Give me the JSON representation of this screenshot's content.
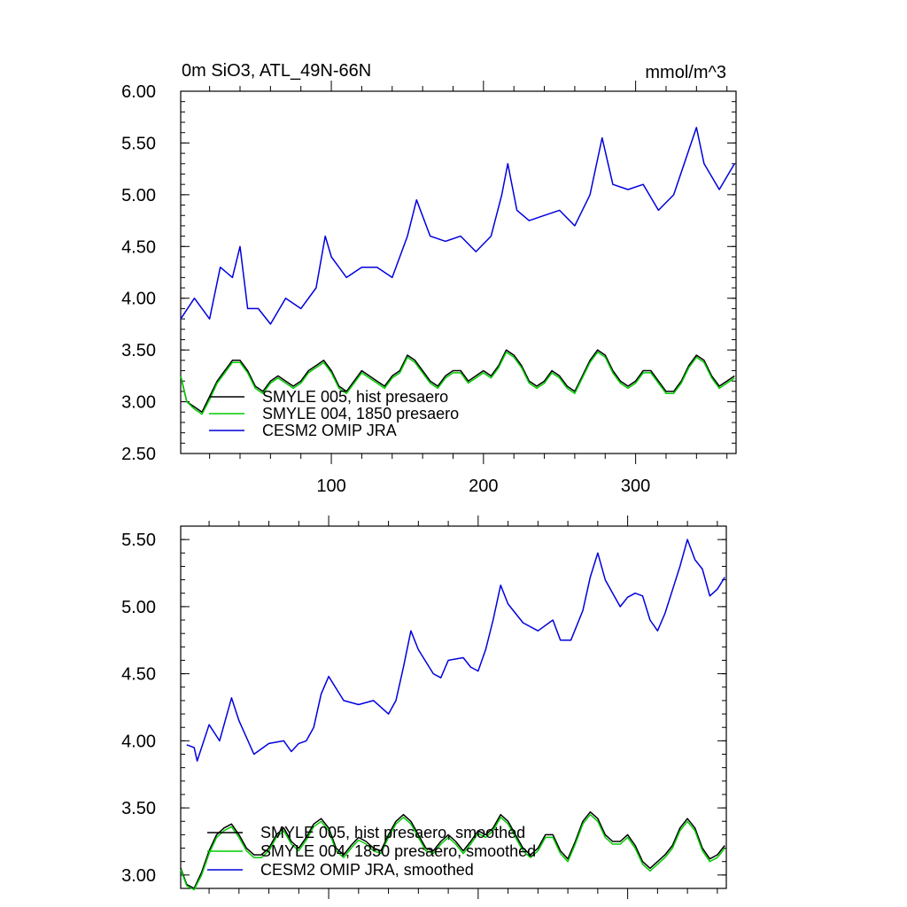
{
  "chart_data": [
    {
      "type": "line",
      "title_left": "0m SiO3, ATL_49N-66N",
      "title_right": "mmol/m^3",
      "xlim": [
        1,
        366
      ],
      "ylim": [
        2.5,
        6.0
      ],
      "x_ticks": [
        100,
        200,
        300
      ],
      "x_tick_labels": [
        "100",
        "200",
        "300"
      ],
      "y_ticks": [
        2.5,
        3.0,
        3.5,
        4.0,
        4.5,
        5.0,
        5.5,
        6.0
      ],
      "y_tick_labels": [
        "2.50",
        "3.00",
        "3.50",
        "4.00",
        "4.50",
        "5.00",
        "5.50",
        "6.00"
      ],
      "legend": [
        {
          "label": "SMYLE 005, hist presaero",
          "color": "#000000"
        },
        {
          "label": "SMYLE 004, 1850 presaero",
          "color": "#00cc00"
        },
        {
          "label": "CESM2 OMIP JRA",
          "color": "#0000dd"
        }
      ],
      "series": [
        {
          "name": "CESM2 OMIP JRA",
          "color": "#0000dd",
          "x": [
            1,
            10,
            20,
            27,
            35,
            40,
            45,
            52,
            60,
            70,
            80,
            90,
            96,
            100,
            110,
            120,
            130,
            140,
            150,
            156,
            165,
            175,
            185,
            195,
            205,
            212,
            216,
            222,
            230,
            240,
            250,
            260,
            270,
            278,
            285,
            295,
            305,
            315,
            325,
            340,
            345,
            355,
            365
          ],
          "values": [
            3.8,
            4.0,
            3.8,
            4.3,
            4.2,
            4.5,
            3.9,
            3.9,
            3.75,
            4.0,
            3.9,
            4.1,
            4.6,
            4.4,
            4.2,
            4.3,
            4.3,
            4.2,
            4.6,
            4.95,
            4.6,
            4.55,
            4.6,
            4.45,
            4.6,
            5.0,
            5.3,
            4.85,
            4.75,
            4.8,
            4.85,
            4.7,
            5.0,
            5.55,
            5.1,
            5.05,
            5.1,
            4.85,
            5.0,
            5.65,
            5.3,
            5.05,
            5.3
          ]
        },
        {
          "name": "SMYLE 005, hist presaero",
          "color": "#000000",
          "x": [
            1,
            5,
            10,
            15,
            20,
            25,
            30,
            35,
            40,
            45,
            50,
            55,
            60,
            65,
            70,
            75,
            80,
            85,
            90,
            95,
            100,
            105,
            110,
            115,
            120,
            125,
            130,
            135,
            140,
            145,
            150,
            155,
            160,
            165,
            170,
            175,
            180,
            185,
            190,
            195,
            200,
            205,
            210,
            215,
            220,
            225,
            230,
            235,
            240,
            245,
            250,
            255,
            260,
            265,
            270,
            275,
            280,
            285,
            290,
            295,
            300,
            305,
            310,
            315,
            320,
            325,
            330,
            335,
            340,
            345,
            350,
            355,
            360,
            365
          ],
          "values": [
            3.25,
            3.0,
            2.95,
            2.9,
            3.05,
            3.2,
            3.3,
            3.4,
            3.4,
            3.3,
            3.15,
            3.1,
            3.2,
            3.25,
            3.2,
            3.15,
            3.2,
            3.3,
            3.35,
            3.4,
            3.3,
            3.15,
            3.1,
            3.2,
            3.3,
            3.25,
            3.2,
            3.15,
            3.25,
            3.3,
            3.45,
            3.4,
            3.3,
            3.2,
            3.15,
            3.25,
            3.3,
            3.3,
            3.2,
            3.25,
            3.3,
            3.25,
            3.35,
            3.5,
            3.45,
            3.35,
            3.2,
            3.15,
            3.2,
            3.3,
            3.25,
            3.15,
            3.1,
            3.25,
            3.4,
            3.5,
            3.45,
            3.3,
            3.2,
            3.15,
            3.2,
            3.3,
            3.3,
            3.2,
            3.1,
            3.1,
            3.2,
            3.35,
            3.45,
            3.4,
            3.25,
            3.15,
            3.2,
            3.25
          ]
        },
        {
          "name": "SMYLE 004, 1850 presaero",
          "color": "#00cc00",
          "x": [
            1,
            5,
            10,
            15,
            20,
            25,
            30,
            35,
            40,
            45,
            50,
            55,
            60,
            65,
            70,
            75,
            80,
            85,
            90,
            95,
            100,
            105,
            110,
            115,
            120,
            125,
            130,
            135,
            140,
            145,
            150,
            155,
            160,
            165,
            170,
            175,
            180,
            185,
            190,
            195,
            200,
            205,
            210,
            215,
            220,
            225,
            230,
            235,
            240,
            245,
            250,
            255,
            260,
            265,
            270,
            275,
            280,
            285,
            290,
            295,
            300,
            305,
            310,
            315,
            320,
            325,
            330,
            335,
            340,
            345,
            350,
            355,
            360,
            365
          ],
          "values": [
            3.25,
            3.0,
            2.93,
            2.88,
            3.02,
            3.18,
            3.28,
            3.38,
            3.38,
            3.28,
            3.13,
            3.08,
            3.18,
            3.23,
            3.18,
            3.13,
            3.18,
            3.28,
            3.33,
            3.38,
            3.28,
            3.13,
            3.08,
            3.18,
            3.28,
            3.23,
            3.18,
            3.13,
            3.23,
            3.28,
            3.43,
            3.38,
            3.28,
            3.18,
            3.13,
            3.23,
            3.28,
            3.28,
            3.18,
            3.23,
            3.28,
            3.23,
            3.33,
            3.48,
            3.43,
            3.33,
            3.18,
            3.13,
            3.18,
            3.28,
            3.23,
            3.13,
            3.08,
            3.23,
            3.38,
            3.48,
            3.43,
            3.28,
            3.18,
            3.13,
            3.18,
            3.28,
            3.28,
            3.18,
            3.08,
            3.08,
            3.18,
            3.33,
            3.43,
            3.38,
            3.23,
            3.13,
            3.18,
            3.23
          ]
        }
      ]
    },
    {
      "type": "line",
      "xlim": [
        1,
        366
      ],
      "ylim": [
        2.9,
        5.6
      ],
      "x_ticks": [
        100,
        200,
        300
      ],
      "x_tick_labels": [],
      "y_ticks": [
        3.0,
        3.5,
        4.0,
        4.5,
        5.0,
        5.5
      ],
      "y_tick_labels": [
        "3.00",
        "3.50",
        "4.00",
        "4.50",
        "5.00",
        "5.50"
      ],
      "legend": [
        {
          "label": "SMYLE 005, hist presaero, smoothed",
          "color": "#000000"
        },
        {
          "label": "SMYLE 004, 1850 presaero, smoothed",
          "color": "#00cc00"
        },
        {
          "label": "CESM2 OMIP JRA, smoothed",
          "color": "#0000dd"
        }
      ],
      "series": [
        {
          "name": "CESM2 OMIP JRA, smoothed",
          "color": "#0000dd",
          "x": [
            5,
            10,
            12,
            20,
            27,
            35,
            40,
            50,
            60,
            70,
            75,
            80,
            85,
            90,
            95,
            100,
            110,
            120,
            130,
            140,
            145,
            150,
            155,
            160,
            170,
            175,
            180,
            190,
            195,
            200,
            205,
            210,
            215,
            220,
            230,
            240,
            250,
            255,
            262,
            270,
            275,
            280,
            285,
            290,
            295,
            300,
            305,
            310,
            315,
            320,
            325,
            335,
            340,
            345,
            350,
            355,
            360,
            365
          ],
          "values": [
            3.97,
            3.95,
            3.85,
            4.12,
            4.0,
            4.32,
            4.15,
            3.9,
            3.98,
            4.0,
            3.92,
            3.98,
            4.0,
            4.1,
            4.35,
            4.48,
            4.3,
            4.27,
            4.3,
            4.2,
            4.3,
            4.55,
            4.82,
            4.68,
            4.5,
            4.47,
            4.6,
            4.62,
            4.55,
            4.52,
            4.68,
            4.9,
            5.16,
            5.02,
            4.88,
            4.82,
            4.9,
            4.75,
            4.75,
            4.97,
            5.22,
            5.4,
            5.2,
            5.1,
            5.0,
            5.07,
            5.1,
            5.08,
            4.9,
            4.82,
            4.95,
            5.3,
            5.5,
            5.35,
            5.28,
            5.08,
            5.13,
            5.22
          ]
        },
        {
          "name": "SMYLE 005, hist presaero, smoothed",
          "color": "#000000",
          "x": [
            1,
            5,
            10,
            15,
            20,
            25,
            30,
            35,
            40,
            45,
            50,
            55,
            60,
            65,
            70,
            75,
            80,
            85,
            90,
            95,
            100,
            105,
            110,
            115,
            120,
            125,
            130,
            135,
            140,
            145,
            150,
            155,
            160,
            165,
            170,
            175,
            180,
            185,
            190,
            195,
            200,
            205,
            210,
            215,
            220,
            225,
            230,
            235,
            240,
            245,
            250,
            255,
            260,
            265,
            270,
            275,
            280,
            285,
            290,
            295,
            300,
            305,
            310,
            315,
            320,
            325,
            330,
            335,
            340,
            345,
            350,
            355,
            360,
            365
          ],
          "values": [
            3.05,
            2.93,
            2.9,
            3.02,
            3.18,
            3.3,
            3.35,
            3.38,
            3.3,
            3.2,
            3.15,
            3.15,
            3.2,
            3.3,
            3.35,
            3.25,
            3.2,
            3.28,
            3.38,
            3.42,
            3.35,
            3.2,
            3.15,
            3.22,
            3.28,
            3.25,
            3.2,
            3.18,
            3.3,
            3.4,
            3.45,
            3.4,
            3.3,
            3.2,
            3.18,
            3.25,
            3.3,
            3.25,
            3.18,
            3.25,
            3.33,
            3.3,
            3.35,
            3.45,
            3.4,
            3.3,
            3.2,
            3.15,
            3.2,
            3.3,
            3.3,
            3.18,
            3.12,
            3.25,
            3.4,
            3.47,
            3.42,
            3.3,
            3.25,
            3.25,
            3.3,
            3.22,
            3.1,
            3.05,
            3.1,
            3.15,
            3.22,
            3.35,
            3.42,
            3.35,
            3.2,
            3.12,
            3.15,
            3.22
          ]
        },
        {
          "name": "SMYLE 004, 1850 presaero, smoothed",
          "color": "#00cc00",
          "x": [
            1,
            5,
            10,
            15,
            20,
            25,
            30,
            35,
            40,
            45,
            50,
            55,
            60,
            65,
            70,
            75,
            80,
            85,
            90,
            95,
            100,
            105,
            110,
            115,
            120,
            125,
            130,
            135,
            140,
            145,
            150,
            155,
            160,
            165,
            170,
            175,
            180,
            185,
            190,
            195,
            200,
            205,
            210,
            215,
            220,
            225,
            230,
            235,
            240,
            245,
            250,
            255,
            260,
            265,
            270,
            275,
            280,
            285,
            290,
            295,
            300,
            305,
            310,
            315,
            320,
            325,
            330,
            335,
            340,
            345,
            350,
            355,
            360,
            365
          ],
          "values": [
            3.04,
            2.92,
            2.89,
            3.0,
            3.16,
            3.28,
            3.33,
            3.36,
            3.28,
            3.18,
            3.13,
            3.13,
            3.18,
            3.28,
            3.33,
            3.23,
            3.18,
            3.26,
            3.36,
            3.4,
            3.33,
            3.18,
            3.13,
            3.2,
            3.26,
            3.23,
            3.18,
            3.16,
            3.28,
            3.38,
            3.43,
            3.38,
            3.28,
            3.18,
            3.16,
            3.23,
            3.28,
            3.23,
            3.16,
            3.23,
            3.31,
            3.28,
            3.33,
            3.43,
            3.38,
            3.28,
            3.18,
            3.13,
            3.18,
            3.28,
            3.28,
            3.16,
            3.1,
            3.23,
            3.38,
            3.45,
            3.4,
            3.28,
            3.23,
            3.23,
            3.28,
            3.2,
            3.08,
            3.03,
            3.08,
            3.13,
            3.2,
            3.33,
            3.4,
            3.33,
            3.18,
            3.1,
            3.13,
            3.2
          ]
        }
      ]
    }
  ]
}
